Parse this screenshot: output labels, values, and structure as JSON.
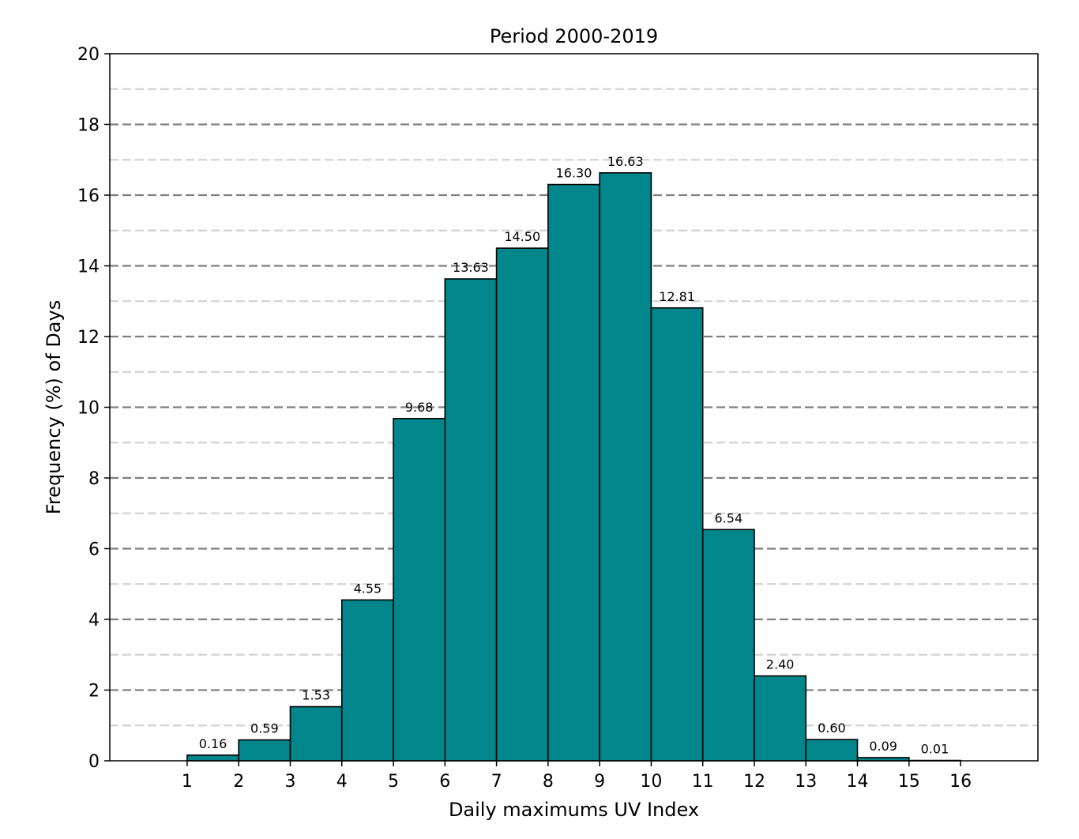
{
  "chart_data": {
    "type": "bar",
    "title": "Period 2000-2019",
    "xlabel": "Daily maximums UV Index",
    "ylabel": "Frequency (%) of Days",
    "bar_color": "#00868B",
    "edge_color": "#000000",
    "major_grid_color": "#7f7f7f",
    "minor_grid_color": "#d3d3d3",
    "grid": true,
    "grid_style": "dashed horizontal, major every 2, minor every 1",
    "xlim": [
      -0.5,
      17.5
    ],
    "ylim": [
      0,
      20
    ],
    "x_ticks": [
      "1",
      "2",
      "3",
      "4",
      "5",
      "6",
      "7",
      "8",
      "9",
      "10",
      "11",
      "12",
      "13",
      "14",
      "15",
      "16"
    ],
    "y_ticks": [
      "0",
      "2",
      "4",
      "6",
      "8",
      "10",
      "12",
      "14",
      "16",
      "18",
      "20"
    ],
    "bins": [
      {
        "from": 1,
        "to": 2,
        "value": 0.16,
        "label": "0.16"
      },
      {
        "from": 2,
        "to": 3,
        "value": 0.59,
        "label": "0.59"
      },
      {
        "from": 3,
        "to": 4,
        "value": 1.53,
        "label": "1.53"
      },
      {
        "from": 4,
        "to": 5,
        "value": 4.55,
        "label": "4.55"
      },
      {
        "from": 5,
        "to": 6,
        "value": 9.68,
        "label": "9.68"
      },
      {
        "from": 6,
        "to": 7,
        "value": 13.63,
        "label": "13.63"
      },
      {
        "from": 7,
        "to": 8,
        "value": 14.5,
        "label": "14.50"
      },
      {
        "from": 8,
        "to": 9,
        "value": 16.3,
        "label": "16.30"
      },
      {
        "from": 9,
        "to": 10,
        "value": 16.63,
        "label": "16.63"
      },
      {
        "from": 10,
        "to": 11,
        "value": 12.81,
        "label": "12.81"
      },
      {
        "from": 11,
        "to": 12,
        "value": 6.54,
        "label": "6.54"
      },
      {
        "from": 12,
        "to": 13,
        "value": 2.4,
        "label": "2.40"
      },
      {
        "from": 13,
        "to": 14,
        "value": 0.6,
        "label": "0.60"
      },
      {
        "from": 14,
        "to": 15,
        "value": 0.09,
        "label": "0.09"
      },
      {
        "from": 15,
        "to": 16,
        "value": 0.01,
        "label": "0.01"
      }
    ]
  }
}
